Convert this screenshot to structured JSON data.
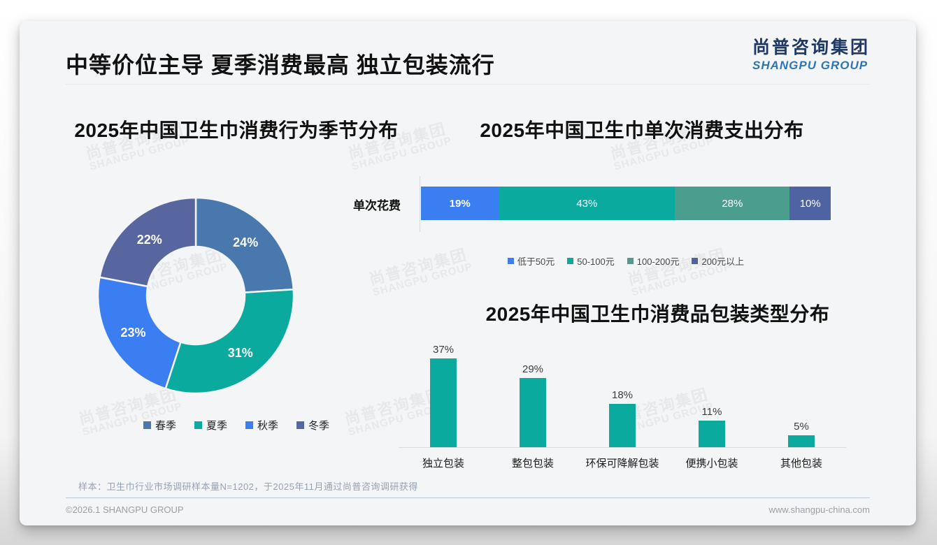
{
  "header": {
    "title": "中等价位主导 夏季消费最高 独立包装流行",
    "logo_cn": "尚普咨询集团",
    "logo_en": "SHANGPU GROUP"
  },
  "watermark": {
    "cn": "尚普咨询集团",
    "en": "SHANGPU GROUP"
  },
  "footer": {
    "note": "样本：卫生巾行业市场调研样本量N=1202，于2025年11月通过尚普咨询调研获得",
    "copyright": "©2026.1 SHANGPU GROUP",
    "website": "www.shangpu-china.com"
  },
  "colors": {
    "teal": "#0aab9e",
    "steel_blue": "#4878ad",
    "bright_blue": "#3b7ef2",
    "slate_indigo": "#5866a0",
    "sea_green": "#4b9e8e",
    "slate_blue": "#4f63a2",
    "logo_navy": "#1f3864",
    "logo_blue": "#2e75b6"
  },
  "chart_data": [
    {
      "type": "pie",
      "donut": true,
      "title": "2025年中国卫生巾消费行为季节分布",
      "start_angle": "top",
      "direction": "clockwise",
      "value_format": "percent",
      "legend_position": "bottom",
      "slices": [
        {
          "label": "春季",
          "value": 24,
          "color": "#4878ad"
        },
        {
          "label": "夏季",
          "value": 31,
          "color": "#0aab9e"
        },
        {
          "label": "秋季",
          "value": 23,
          "color": "#3b7ef2"
        },
        {
          "label": "冬季",
          "value": 22,
          "color": "#5866a0"
        }
      ]
    },
    {
      "type": "bar",
      "orientation": "horizontal",
      "stacked": true,
      "title": "2025年中国卫生巾单次消费支出分布",
      "category": "单次花费",
      "value_format": "percent",
      "legend_position": "bottom",
      "segments": [
        {
          "label": "低于50元",
          "value": 19,
          "color": "#3b7ef2"
        },
        {
          "label": "50-100元",
          "value": 43,
          "color": "#0aab9e"
        },
        {
          "label": "100-200元",
          "value": 28,
          "color": "#4b9e8e"
        },
        {
          "label": "200元以上",
          "value": 10,
          "color": "#4f63a2"
        }
      ]
    },
    {
      "type": "bar",
      "orientation": "vertical",
      "title": "2025年中国卫生巾消费品包装类型分布",
      "value_format": "percent",
      "grid": false,
      "ylim": [
        0,
        40
      ],
      "bar_color": "#0aab9e",
      "categories": [
        "独立包装",
        "整包包装",
        "环保可降解包装",
        "便携小包装",
        "其他包装"
      ],
      "values": [
        37,
        29,
        18,
        11,
        5
      ]
    }
  ]
}
